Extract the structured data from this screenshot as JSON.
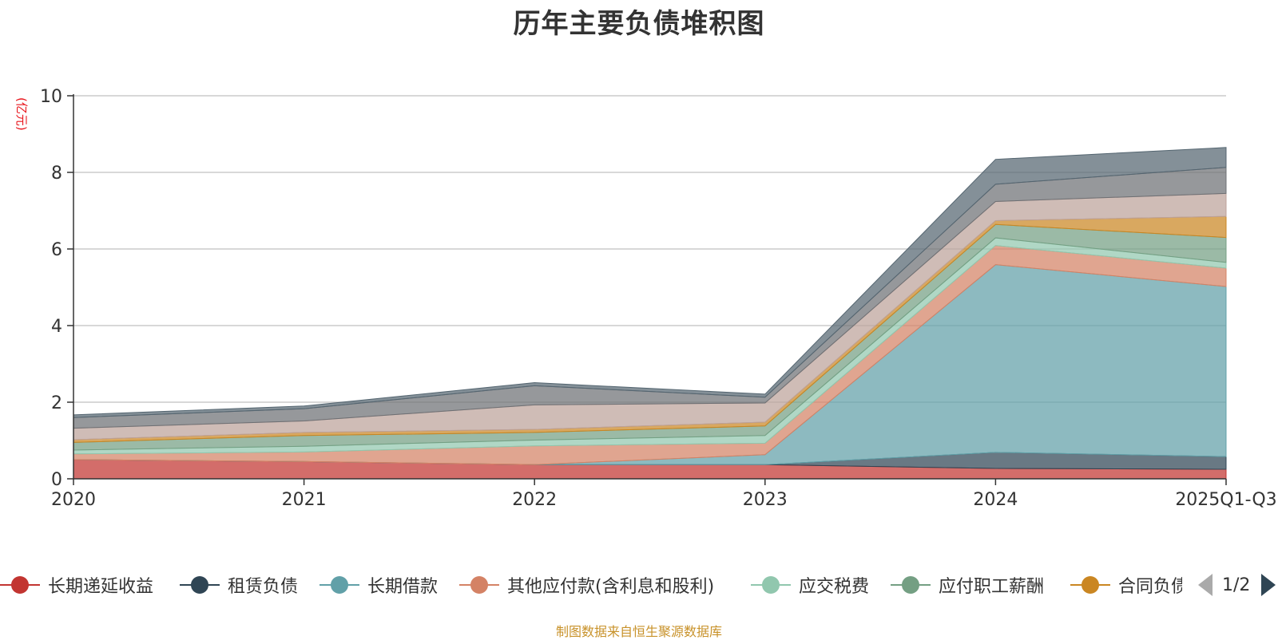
{
  "chart_data": {
    "type": "area",
    "stacked": true,
    "title": "历年主要负债堆积图",
    "ylabel": "(亿元)",
    "ylim": [
      0,
      10
    ],
    "yticks": [
      0,
      2,
      4,
      6,
      8,
      10
    ],
    "grid": true,
    "categories": [
      "2020",
      "2021",
      "2022",
      "2023",
      "2024",
      "2025Q1-Q3"
    ],
    "series": [
      {
        "name": "长期递延收益",
        "color": "#c23531",
        "values": [
          0.5,
          0.45,
          0.37,
          0.37,
          0.27,
          0.25
        ]
      },
      {
        "name": "租赁负债",
        "color": "#2f4554",
        "values": [
          0.0,
          0.0,
          0.0,
          0.0,
          0.42,
          0.33
        ]
      },
      {
        "name": "长期借款",
        "color": "#61a0a8",
        "values": [
          0.0,
          0.0,
          0.0,
          0.26,
          4.9,
          4.44
        ]
      },
      {
        "name": "其他应付款(含利息和股利)",
        "color": "#d48265",
        "values": [
          0.15,
          0.25,
          0.49,
          0.3,
          0.5,
          0.48
        ]
      },
      {
        "name": "应交税费",
        "color": "#91c7ae",
        "values": [
          0.1,
          0.15,
          0.15,
          0.2,
          0.2,
          0.15
        ]
      },
      {
        "name": "应付职工薪酬",
        "color": "#749f83",
        "values": [
          0.2,
          0.28,
          0.2,
          0.25,
          0.35,
          0.65
        ]
      },
      {
        "name": "合同负债",
        "color": "#ca8622",
        "values": [
          0.07,
          0.08,
          0.08,
          0.1,
          0.1,
          0.55
        ]
      },
      {
        "name": "",
        "color": "#bda29a",
        "values": [
          0.3,
          0.3,
          0.64,
          0.5,
          0.5,
          0.6
        ]
      },
      {
        "name": "",
        "color": "#6e7074",
        "values": [
          0.28,
          0.32,
          0.5,
          0.15,
          0.45,
          0.68
        ]
      },
      {
        "name": "",
        "color": "#546570",
        "values": [
          0.07,
          0.07,
          0.08,
          0.08,
          0.65,
          0.52
        ]
      }
    ]
  },
  "legend": {
    "items": [
      "长期递延收益",
      "租赁负债",
      "长期借款",
      "其他应付款(含利息和股利)",
      "应交税费",
      "应付职工薪酬",
      "合同负债"
    ],
    "pager_text": "1/2"
  },
  "source": "制图数据来自恒生聚源数据库"
}
